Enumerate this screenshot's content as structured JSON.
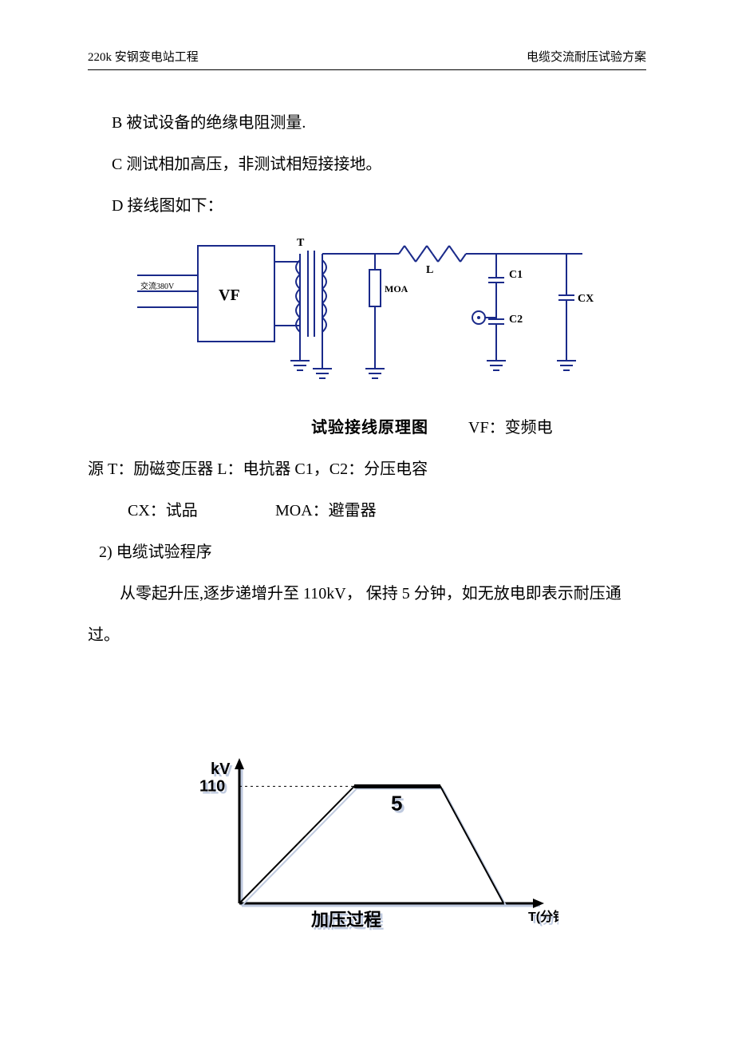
{
  "header": {
    "left": "220k 安钢变电站工程",
    "right": "电缆交流耐压试验方案"
  },
  "lines": {
    "B": "B 被试设备的绝缘电阻测量.",
    "C": "C 测试相加高压，非测试相短接接地。",
    "D": "D 接线图如下："
  },
  "circuit": {
    "type": "circuit-diagram",
    "caption": "试验接线原理图",
    "stroke_color": "#1a2a8a",
    "stroke_width": 2,
    "background_color": "#ffffff",
    "input_label": "交流380V",
    "components": {
      "VF": {
        "label": "VF",
        "desc": "变频电源"
      },
      "T": {
        "label": "T",
        "desc": "励磁变压器"
      },
      "L": {
        "label": "L",
        "desc": "电抗器"
      },
      "MOA": {
        "label": "MOA",
        "desc": "避雷器"
      },
      "C1": {
        "label": "C1",
        "desc": "分压电容"
      },
      "C2": {
        "label": "C2",
        "desc": "分压电容"
      },
      "CX": {
        "label": "CX",
        "desc": "试品"
      }
    },
    "label_font_size": 14,
    "vf_font_size": 20
  },
  "legend": {
    "line1_prefix": "VF：变频电",
    "line2": "源  T：励磁变压器   L：电抗器    C1，C2：分压电容",
    "line3_a": "CX：试品",
    "line3_b": "MOA：避雷器"
  },
  "section2_title": "2) 电缆试验程序",
  "section2_body": "从零起升压,逐步递增升至 110kV，  保持 5 分钟，如无放电即表示耐压通过。",
  "chart": {
    "type": "line",
    "stroke_color": "#1a2a8a",
    "fill_color": "#ffffff",
    "axis_width": 3,
    "line_width": 2,
    "y_label": "kV",
    "y_tick_label": "110",
    "x_label": "T(分钟)",
    "plateau_label": "5",
    "caption": "加压过程",
    "label_font_size": 20,
    "label_font_weight": "bold",
    "xlim": [
      0,
      10
    ],
    "ylim": [
      0,
      120
    ],
    "points_x": [
      0,
      4,
      7,
      9.2
    ],
    "points_y": [
      0,
      110,
      110,
      0
    ],
    "plateau_line_width": 5
  }
}
